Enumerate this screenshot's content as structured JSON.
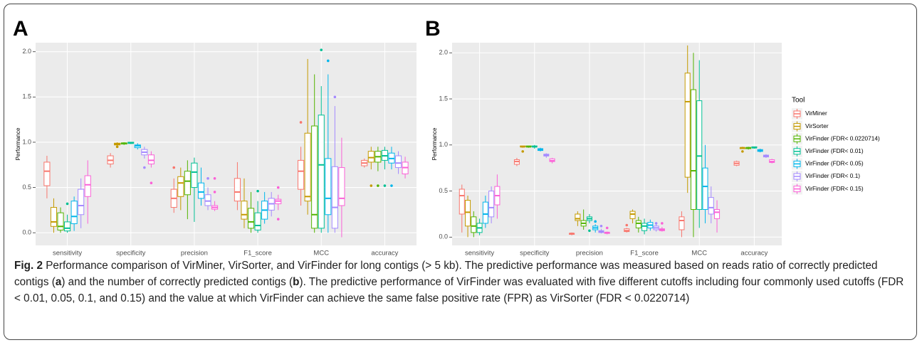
{
  "chart_data": [
    {
      "type": "box",
      "panel_label": "A",
      "y_label": "Performance",
      "categories": [
        "sensitivity",
        "specificity",
        "precision",
        "F1_score",
        "MCC",
        "accuracy"
      ],
      "ylim": [
        -0.14,
        2.1
      ],
      "yticks": [
        {
          "value": 0,
          "label": "0.0"
        },
        {
          "value": 0.5,
          "label": "0.5"
        },
        {
          "value": 1,
          "label": "1.0"
        },
        {
          "value": 1.5,
          "label": "1.5"
        },
        {
          "value": 2,
          "label": "2.0"
        }
      ],
      "series": [
        {
          "color": "#F8766D",
          "boxes": [
            {
              "low": 0.38,
              "q1": 0.52,
              "median": 0.68,
              "q3": 0.78,
              "high": 0.85
            },
            {
              "low": 0.72,
              "q1": 0.76,
              "median": 0.8,
              "q3": 0.85,
              "high": 0.88
            },
            {
              "low": 0.22,
              "q1": 0.28,
              "median": 0.38,
              "q3": 0.48,
              "high": 0.6
            },
            {
              "low": 0.25,
              "q1": 0.35,
              "median": 0.45,
              "q3": 0.6,
              "high": 0.78
            },
            {
              "low": 0.3,
              "q1": 0.48,
              "median": 0.68,
              "q3": 0.8,
              "high": 0.95
            },
            {
              "low": 0.72,
              "q1": 0.74,
              "median": 0.77,
              "q3": 0.8,
              "high": 0.82
            }
          ],
          "outliers": [
            [],
            [],
            [
              0.72
            ],
            [],
            [
              1.22
            ],
            []
          ]
        },
        {
          "color": "#C49A00",
          "boxes": [
            {
              "low": 0.0,
              "q1": 0.07,
              "median": 0.12,
              "q3": 0.28,
              "high": 0.38
            },
            {
              "low": 0.96,
              "q1": 0.97,
              "median": 0.98,
              "q3": 0.99,
              "high": 1.0
            },
            {
              "low": 0.25,
              "q1": 0.4,
              "median": 0.55,
              "q3": 0.62,
              "high": 0.72
            },
            {
              "low": 0.05,
              "q1": 0.15,
              "median": 0.2,
              "q3": 0.35,
              "high": 0.6
            },
            {
              "low": 0.2,
              "q1": 0.35,
              "median": 0.4,
              "q3": 1.1,
              "high": 1.92
            },
            {
              "low": 0.7,
              "q1": 0.78,
              "median": 0.83,
              "q3": 0.9,
              "high": 0.95
            }
          ],
          "outliers": [
            [],
            [
              0.95
            ],
            [],
            [],
            [],
            [
              0.52
            ]
          ]
        },
        {
          "color": "#53B400",
          "boxes": [
            {
              "low": 0.0,
              "q1": 0.03,
              "median": 0.07,
              "q3": 0.22,
              "high": 0.28
            },
            {
              "low": 0.97,
              "q1": 0.98,
              "median": 0.99,
              "q3": 0.99,
              "high": 1.0
            },
            {
              "low": 0.15,
              "q1": 0.42,
              "median": 0.57,
              "q3": 0.68,
              "high": 0.8
            },
            {
              "low": 0.0,
              "q1": 0.05,
              "median": 0.12,
              "q3": 0.27,
              "high": 0.45
            },
            {
              "low": 0.0,
              "q1": 0.05,
              "median": 0.2,
              "q3": 1.18,
              "high": 1.75
            },
            {
              "low": 0.68,
              "q1": 0.78,
              "median": 0.84,
              "q3": 0.9,
              "high": 0.95
            }
          ],
          "outliers": [
            [],
            [],
            [],
            [],
            [],
            [
              0.52
            ]
          ]
        },
        {
          "color": "#00C094",
          "boxes": [
            {
              "low": 0.0,
              "q1": 0.02,
              "median": 0.05,
              "q3": 0.12,
              "high": 0.2
            },
            {
              "low": 0.98,
              "q1": 0.99,
              "median": 0.99,
              "q3": 1.0,
              "high": 1.0
            },
            {
              "low": 0.12,
              "q1": 0.5,
              "median": 0.67,
              "q3": 0.77,
              "high": 0.83
            },
            {
              "low": 0.0,
              "q1": 0.03,
              "median": 0.08,
              "q3": 0.22,
              "high": 0.35
            },
            {
              "low": 0.0,
              "q1": 0.05,
              "median": 0.75,
              "q3": 1.3,
              "high": 1.62
            },
            {
              "low": 0.7,
              "q1": 0.8,
              "median": 0.85,
              "q3": 0.91,
              "high": 0.95
            }
          ],
          "outliers": [
            [
              0.32
            ],
            [],
            [],
            [
              0.46
            ],
            [
              2.02
            ],
            [
              0.52
            ]
          ]
        },
        {
          "color": "#00B6EB",
          "boxes": [
            {
              "low": 0.02,
              "q1": 0.1,
              "median": 0.18,
              "q3": 0.35,
              "high": 0.4
            },
            {
              "low": 0.92,
              "q1": 0.94,
              "median": 0.96,
              "q3": 0.97,
              "high": 0.99
            },
            {
              "low": 0.3,
              "q1": 0.38,
              "median": 0.45,
              "q3": 0.55,
              "high": 0.72
            },
            {
              "low": 0.1,
              "q1": 0.15,
              "median": 0.25,
              "q3": 0.35,
              "high": 0.45
            },
            {
              "low": 0.0,
              "q1": 0.2,
              "median": 0.38,
              "q3": 0.82,
              "high": 1.75
            },
            {
              "low": 0.7,
              "q1": 0.77,
              "median": 0.82,
              "q3": 0.88,
              "high": 0.95
            }
          ],
          "outliers": [
            [],
            [],
            [],
            [],
            [
              1.9
            ],
            [
              0.52
            ]
          ]
        },
        {
          "color": "#A58AFF",
          "boxes": [
            {
              "low": 0.05,
              "q1": 0.2,
              "median": 0.3,
              "q3": 0.48,
              "high": 0.6
            },
            {
              "low": 0.82,
              "q1": 0.86,
              "median": 0.89,
              "q3": 0.92,
              "high": 0.95
            },
            {
              "low": 0.25,
              "q1": 0.3,
              "median": 0.35,
              "q3": 0.42,
              "high": 0.5
            },
            {
              "low": 0.18,
              "q1": 0.25,
              "median": 0.32,
              "q3": 0.38,
              "high": 0.45
            },
            {
              "low": 0.0,
              "q1": 0.05,
              "median": 0.28,
              "q3": 0.73,
              "high": 1.4
            },
            {
              "low": 0.65,
              "q1": 0.72,
              "median": 0.77,
              "q3": 0.85,
              "high": 0.9
            }
          ],
          "outliers": [
            [],
            [
              0.72
            ],
            [
              0.6
            ],
            [],
            [
              1.5
            ],
            []
          ]
        },
        {
          "color": "#FB61D7",
          "boxes": [
            {
              "low": 0.1,
              "q1": 0.4,
              "median": 0.53,
              "q3": 0.63,
              "high": 0.8
            },
            {
              "low": 0.72,
              "q1": 0.76,
              "median": 0.8,
              "q3": 0.86,
              "high": 0.9
            },
            {
              "low": 0.24,
              "q1": 0.26,
              "median": 0.28,
              "q3": 0.3,
              "high": 0.35
            },
            {
              "low": 0.25,
              "q1": 0.32,
              "median": 0.35,
              "q3": 0.37,
              "high": 0.42
            },
            {
              "low": -0.05,
              "q1": 0.3,
              "median": 0.38,
              "q3": 0.72,
              "high": 1.05
            },
            {
              "low": 0.6,
              "q1": 0.65,
              "median": 0.72,
              "q3": 0.78,
              "high": 0.84
            }
          ],
          "outliers": [
            [],
            [
              0.55
            ],
            [
              0.6,
              0.45
            ],
            [
              0.5,
              0.15
            ],
            [],
            []
          ]
        }
      ]
    },
    {
      "type": "box",
      "panel_label": "B",
      "y_label": "Performance",
      "legend_title": "Tool",
      "categories": [
        "sensitivity",
        "specificity",
        "precision",
        "F1_score",
        "MCC",
        "accuracy"
      ],
      "ylim": [
        -0.09,
        2.11
      ],
      "yticks": [
        {
          "value": 0,
          "label": "0.0"
        },
        {
          "value": 0.5,
          "label": "0.5"
        },
        {
          "value": 1,
          "label": "1.0"
        },
        {
          "value": 1.5,
          "label": "1.5"
        },
        {
          "value": 2,
          "label": "2.0"
        }
      ],
      "series": [
        {
          "name": "VirMiner",
          "color": "#F8766D",
          "boxes": [
            {
              "low": 0.05,
              "q1": 0.25,
              "median": 0.45,
              "q3": 0.52,
              "high": 0.57
            },
            {
              "low": 0.77,
              "q1": 0.79,
              "median": 0.82,
              "q3": 0.84,
              "high": 0.86
            },
            {
              "low": 0.02,
              "q1": 0.03,
              "median": 0.04,
              "q3": 0.04,
              "high": 0.05
            },
            {
              "low": 0.05,
              "q1": 0.06,
              "median": 0.07,
              "q3": 0.09,
              "high": 0.1
            },
            {
              "low": 0.0,
              "q1": 0.08,
              "median": 0.18,
              "q3": 0.22,
              "high": 0.28
            },
            {
              "low": 0.77,
              "q1": 0.78,
              "median": 0.8,
              "q3": 0.82,
              "high": 0.83
            }
          ],
          "outliers": [
            [],
            [],
            [],
            [
              0.13
            ],
            [],
            []
          ]
        },
        {
          "name": "VirSorter",
          "color": "#C49A00",
          "boxes": [
            {
              "low": 0.0,
              "q1": 0.12,
              "median": 0.27,
              "q3": 0.4,
              "high": 0.45
            },
            {
              "low": 0.97,
              "q1": 0.98,
              "median": 0.98,
              "q3": 0.99,
              "high": 0.99
            },
            {
              "low": 0.12,
              "q1": 0.18,
              "median": 0.2,
              "q3": 0.25,
              "high": 0.28
            },
            {
              "low": 0.15,
              "q1": 0.2,
              "median": 0.25,
              "q3": 0.28,
              "high": 0.3
            },
            {
              "low": 0.48,
              "q1": 0.65,
              "median": 1.47,
              "q3": 1.78,
              "high": 2.08
            },
            {
              "low": 0.96,
              "q1": 0.96,
              "median": 0.97,
              "q3": 0.97,
              "high": 0.98
            }
          ],
          "outliers": [
            [],
            [
              0.93
            ],
            [],
            [],
            [],
            [
              0.93
            ]
          ]
        },
        {
          "name": "VirFinder (FDR< 0.0220714)",
          "color": "#53B400",
          "boxes": [
            {
              "low": 0.0,
              "q1": 0.05,
              "median": 0.12,
              "q3": 0.22,
              "high": 0.28
            },
            {
              "low": 0.97,
              "q1": 0.98,
              "median": 0.98,
              "q3": 0.99,
              "high": 0.99
            },
            {
              "low": 0.08,
              "q1": 0.12,
              "median": 0.15,
              "q3": 0.18,
              "high": 0.3
            },
            {
              "low": 0.05,
              "q1": 0.1,
              "median": 0.15,
              "q3": 0.18,
              "high": 0.22
            },
            {
              "low": 0.0,
              "q1": 0.3,
              "median": 0.72,
              "q3": 1.6,
              "high": 2.0
            },
            {
              "low": 0.95,
              "q1": 0.96,
              "median": 0.97,
              "q3": 0.97,
              "high": 0.98
            }
          ],
          "outliers": [
            [],
            [],
            [],
            [],
            [],
            []
          ]
        },
        {
          "name": "VirFinder (FDR< 0.01)",
          "color": "#00C094",
          "boxes": [
            {
              "low": 0.02,
              "q1": 0.05,
              "median": 0.1,
              "q3": 0.15,
              "high": 0.2
            },
            {
              "low": 0.96,
              "q1": 0.98,
              "median": 0.98,
              "q3": 0.99,
              "high": 1.0
            },
            {
              "low": 0.15,
              "q1": 0.18,
              "median": 0.2,
              "q3": 0.22,
              "high": 0.25
            },
            {
              "low": 0.03,
              "q1": 0.07,
              "median": 0.12,
              "q3": 0.15,
              "high": 0.2
            },
            {
              "low": 0.1,
              "q1": 0.3,
              "median": 0.88,
              "q3": 1.48,
              "high": 1.92
            },
            {
              "low": 0.96,
              "q1": 0.97,
              "median": 0.97,
              "q3": 0.98,
              "high": 0.98
            }
          ],
          "outliers": [
            [],
            [],
            [
              0.07
            ],
            [],
            [],
            []
          ]
        },
        {
          "name": "VirFinder (FDR< 0.05)",
          "color": "#00B6EB",
          "boxes": [
            {
              "low": 0.1,
              "q1": 0.15,
              "median": 0.25,
              "q3": 0.38,
              "high": 0.45
            },
            {
              "low": 0.93,
              "q1": 0.94,
              "median": 0.95,
              "q3": 0.96,
              "high": 0.97
            },
            {
              "low": 0.05,
              "q1": 0.08,
              "median": 0.1,
              "q3": 0.12,
              "high": 0.14
            },
            {
              "low": 0.07,
              "q1": 0.1,
              "median": 0.13,
              "q3": 0.16,
              "high": 0.19
            },
            {
              "low": 0.15,
              "q1": 0.3,
              "median": 0.55,
              "q3": 0.75,
              "high": 1.0
            },
            {
              "low": 0.92,
              "q1": 0.93,
              "median": 0.94,
              "q3": 0.95,
              "high": 0.96
            }
          ],
          "outliers": [
            [],
            [],
            [
              0.17
            ],
            [],
            [],
            []
          ]
        },
        {
          "name": "VirFinder (FDR< 0.1)",
          "color": "#A58AFF",
          "boxes": [
            {
              "low": 0.15,
              "q1": 0.22,
              "median": 0.32,
              "q3": 0.5,
              "high": 0.55
            },
            {
              "low": 0.86,
              "q1": 0.88,
              "median": 0.89,
              "q3": 0.9,
              "high": 0.91
            },
            {
              "low": 0.04,
              "q1": 0.05,
              "median": 0.06,
              "q3": 0.07,
              "high": 0.09
            },
            {
              "low": 0.06,
              "q1": 0.08,
              "median": 0.1,
              "q3": 0.12,
              "high": 0.14
            },
            {
              "low": 0.15,
              "q1": 0.25,
              "median": 0.32,
              "q3": 0.43,
              "high": 0.55
            },
            {
              "low": 0.86,
              "q1": 0.87,
              "median": 0.88,
              "q3": 0.89,
              "high": 0.9
            }
          ],
          "outliers": [
            [],
            [],
            [
              0.12
            ],
            [
              0.15
            ],
            [],
            []
          ]
        },
        {
          "name": "VirFinder (FDR< 0.15)",
          "color": "#FB61D7",
          "boxes": [
            {
              "low": 0.2,
              "q1": 0.35,
              "median": 0.45,
              "q3": 0.55,
              "high": 0.68
            },
            {
              "low": 0.8,
              "q1": 0.82,
              "median": 0.83,
              "q3": 0.85,
              "high": 0.86
            },
            {
              "low": 0.03,
              "q1": 0.04,
              "median": 0.05,
              "q3": 0.05,
              "high": 0.06
            },
            {
              "low": 0.06,
              "q1": 0.07,
              "median": 0.08,
              "q3": 0.09,
              "high": 0.11
            },
            {
              "low": 0.05,
              "q1": 0.2,
              "median": 0.27,
              "q3": 0.3,
              "high": 0.4
            },
            {
              "low": 0.8,
              "q1": 0.81,
              "median": 0.82,
              "q3": 0.84,
              "high": 0.85
            }
          ],
          "outliers": [
            [],
            [],
            [
              0.1
            ],
            [
              0.15
            ],
            [],
            []
          ]
        }
      ]
    }
  ],
  "caption": {
    "label": "Fig. 2",
    "parts": [
      "Performance comparison of VirMiner, VirSorter, and VirFinder for long contigs (> 5 kb). The predictive performance was measured based on reads ratio of correctly predicted contigs (",
      "a",
      ") and the number of correctly predicted contigs (",
      "b",
      "). The predictive performance of VirFinder was evaluated with five different cutoffs including four commonly used cutoffs (FDR < 0.01, 0.05, 0.1, and 0.15) and the value at which VirFinder can achieve the same false positive rate (FPR) as VirSorter (FDR < 0.0220714)"
    ]
  }
}
